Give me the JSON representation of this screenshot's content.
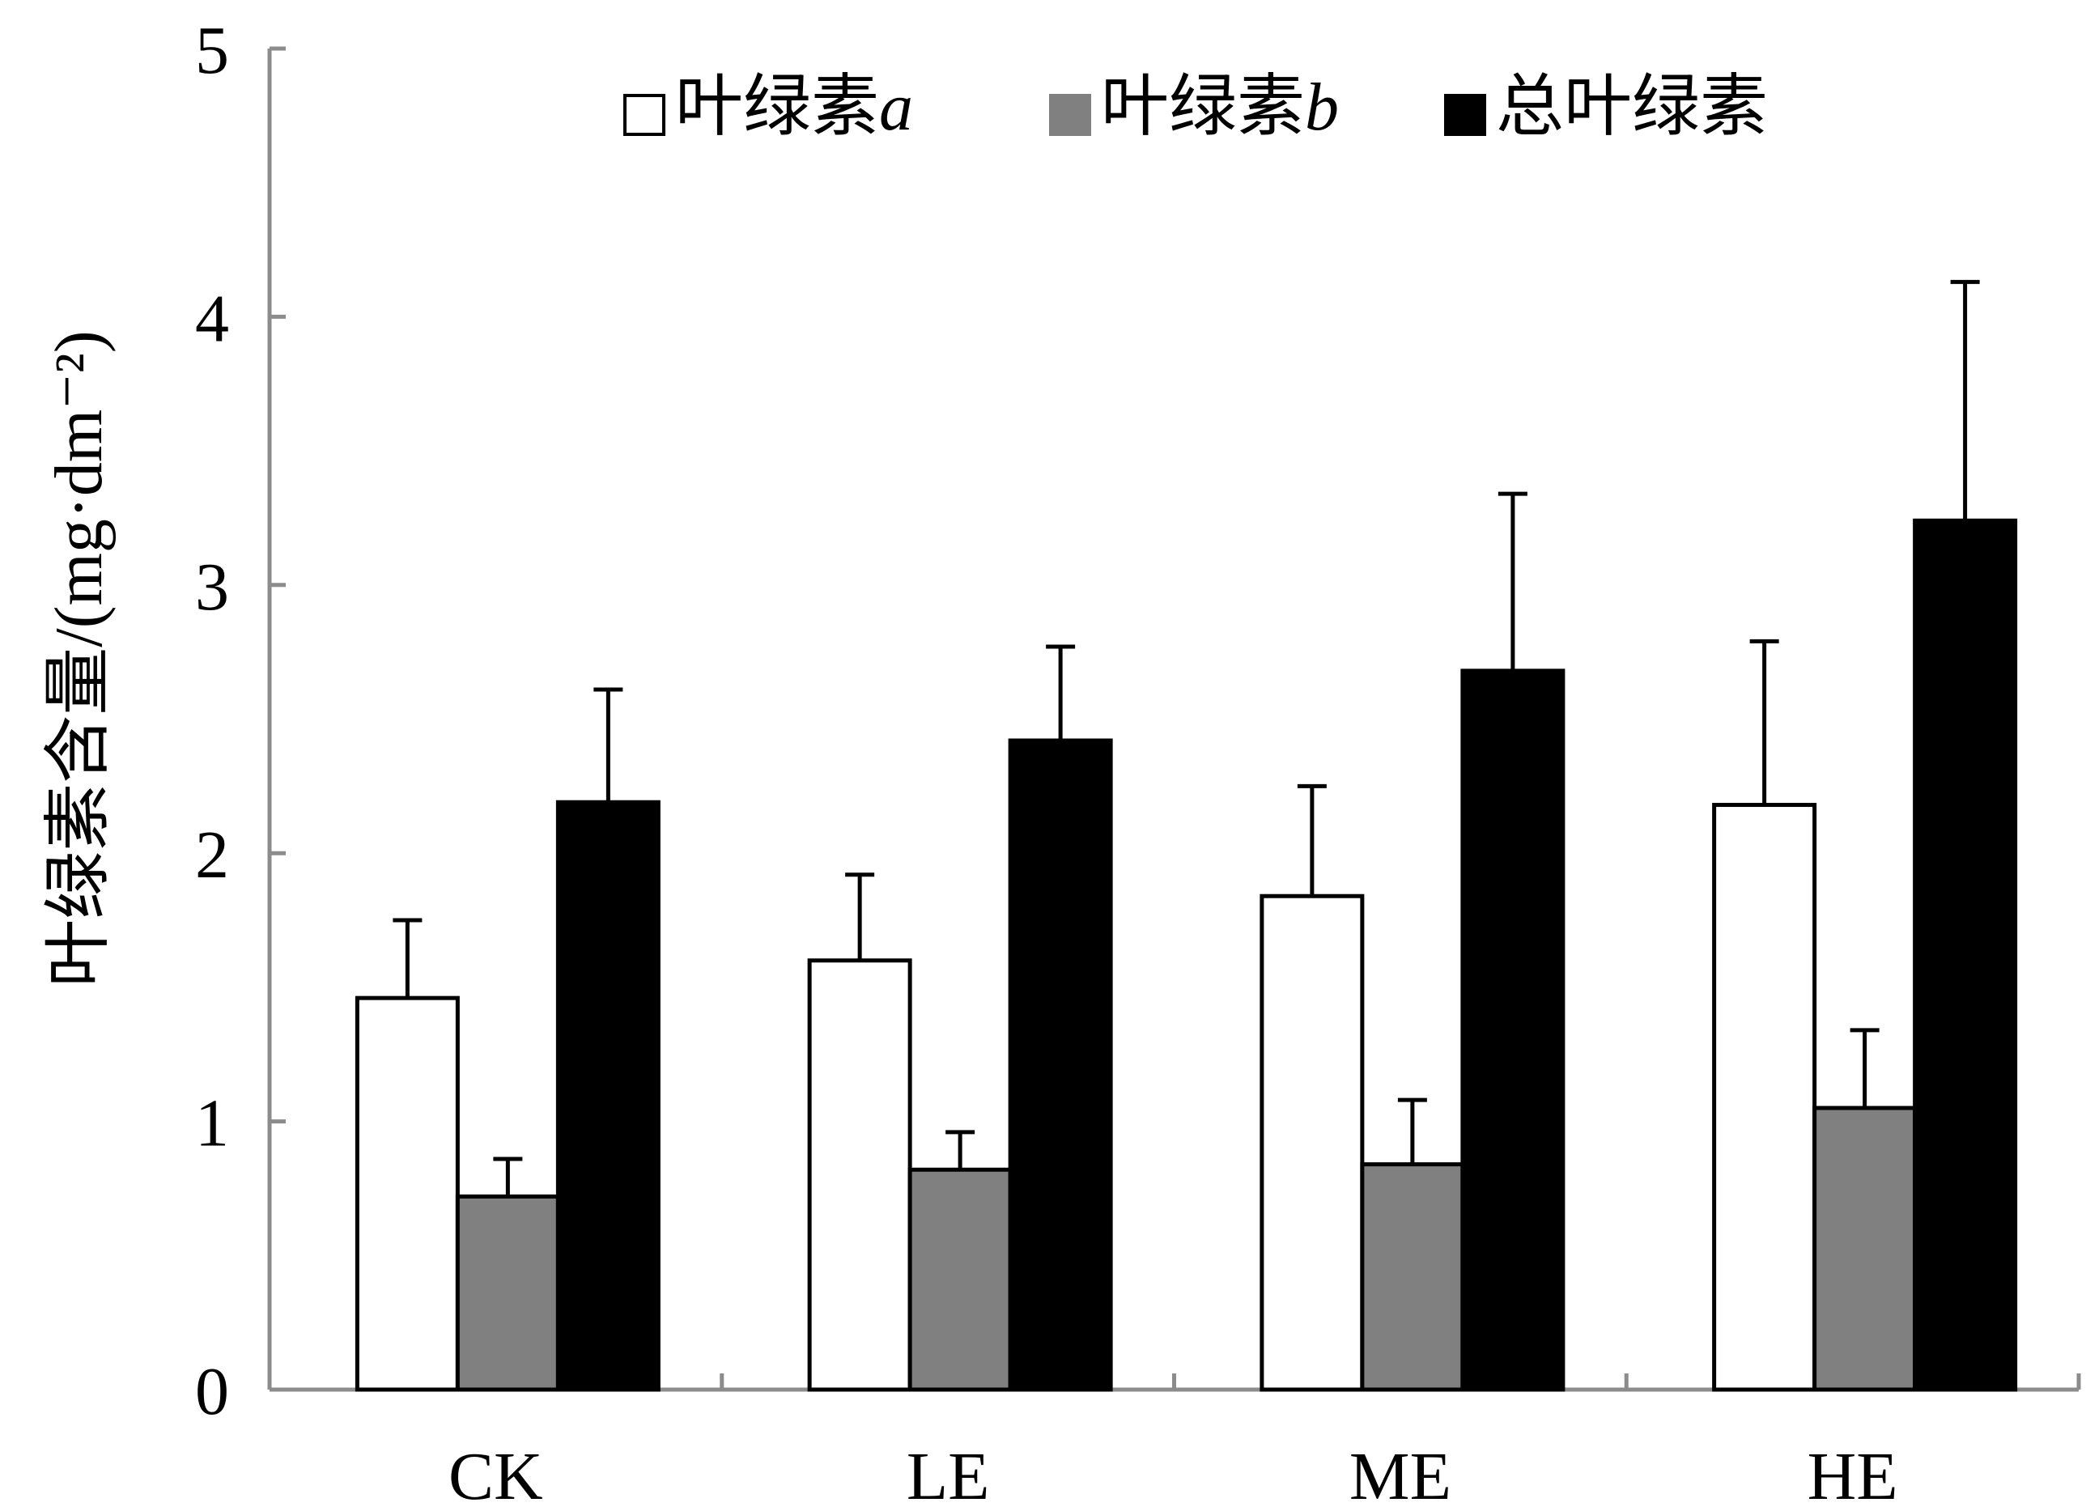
{
  "chart_data": {
    "type": "bar",
    "categories": [
      "CK",
      "LE",
      "ME",
      "HE"
    ],
    "series": [
      {
        "name": "叶绿素a",
        "legend_prefix": "叶绿素",
        "legend_italic": "a",
        "color": "#ffffff",
        "values": [
          1.46,
          1.6,
          1.84,
          2.18
        ],
        "errors": [
          0.29,
          0.32,
          0.41,
          0.61
        ]
      },
      {
        "name": "叶绿素b",
        "legend_prefix": "叶绿素",
        "legend_italic": "b",
        "color": "#808080",
        "values": [
          0.72,
          0.82,
          0.84,
          1.05
        ],
        "errors": [
          0.14,
          0.14,
          0.24,
          0.29
        ]
      },
      {
        "name": "总叶绿素",
        "legend_prefix": "总叶绿素",
        "legend_italic": "",
        "color": "#000000",
        "values": [
          2.19,
          2.42,
          2.68,
          3.24
        ],
        "errors": [
          0.42,
          0.35,
          0.66,
          0.89
        ]
      }
    ],
    "ylabel": "叶绿素含量/(mg·dm⁻²)",
    "xlabel": "",
    "title": "",
    "ylim": [
      0,
      5
    ],
    "yticks": [
      "0",
      "1",
      "2",
      "3",
      "4",
      "5"
    ],
    "grid": false,
    "legend_position": "top-center"
  }
}
